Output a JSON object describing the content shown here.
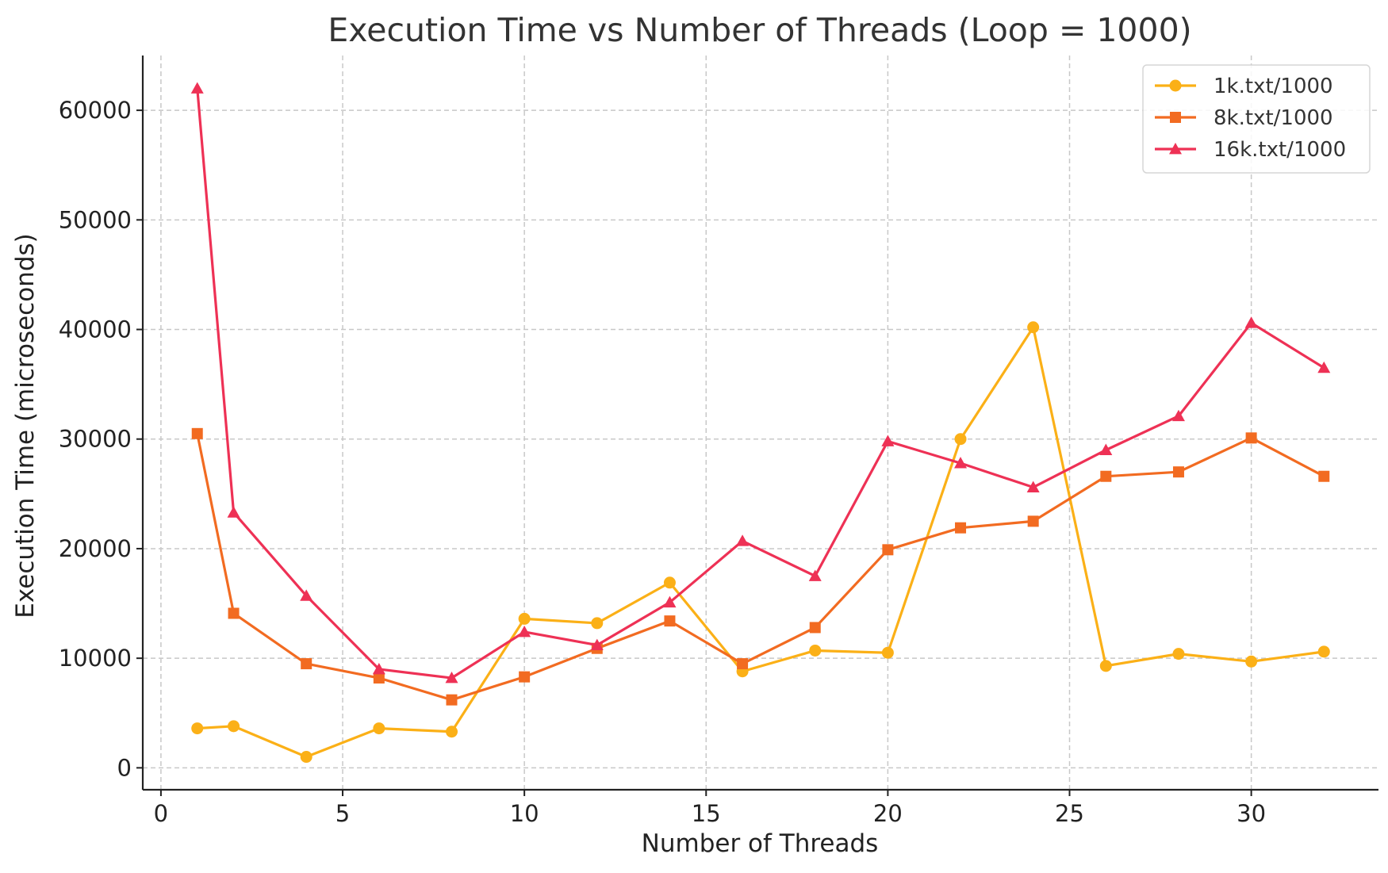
{
  "chart_data": {
    "type": "line",
    "title": "Execution Time vs Number of Threads (Loop = 1000)",
    "xlabel": "Number of Threads",
    "ylabel": "Execution Time (microseconds)",
    "xlim": [
      -0.5,
      33.5
    ],
    "ylim": [
      -2000,
      65000
    ],
    "xticks": [
      0,
      5,
      10,
      15,
      20,
      25,
      30
    ],
    "yticks": [
      0,
      10000,
      20000,
      30000,
      40000,
      50000,
      60000
    ],
    "grid": true,
    "legend_position": "top-right",
    "x": [
      1,
      2,
      4,
      6,
      8,
      10,
      12,
      14,
      16,
      18,
      20,
      22,
      24,
      26,
      28,
      30,
      32
    ],
    "series": [
      {
        "name": "1k.txt/1000",
        "color": "#FBB017",
        "marker": "circle",
        "values": [
          3600,
          3800,
          1000,
          3600,
          3300,
          13600,
          13200,
          16900,
          8800,
          10700,
          10500,
          30000,
          40200,
          9300,
          10400,
          9700,
          10600
        ]
      },
      {
        "name": "8k.txt/1000",
        "color": "#F26B21",
        "marker": "square",
        "values": [
          30500,
          14100,
          9500,
          8200,
          6200,
          8300,
          10900,
          13400,
          9500,
          12800,
          19900,
          21900,
          22500,
          26600,
          27000,
          30100,
          26600
        ]
      },
      {
        "name": "16k.txt/1000",
        "color": "#EE3155",
        "marker": "triangle",
        "values": [
          62000,
          23300,
          15700,
          9000,
          8200,
          12400,
          11200,
          15100,
          20700,
          17500,
          29800,
          27800,
          25600,
          29000,
          32100,
          40600,
          36500
        ]
      }
    ]
  }
}
